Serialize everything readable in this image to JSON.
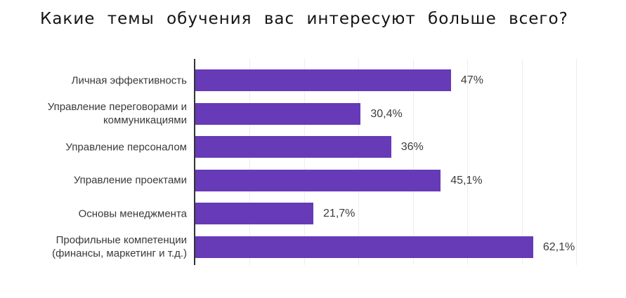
{
  "chart_data": {
    "type": "bar",
    "orientation": "horizontal",
    "title": "Какие темы обучения вас интересуют больше всего?",
    "xlabel": "",
    "ylabel": "",
    "categories": [
      "Личная эффективность",
      "Управление переговорами и коммуникациями",
      "Управление персоналом",
      "Управление проектами",
      "Основы менеджмента",
      "Профильные компетенции (финансы, маркетинг и т.д.)"
    ],
    "values": [
      47,
      30.4,
      36,
      45.1,
      21.7,
      62.1
    ],
    "value_labels": [
      "47%",
      "30,4%",
      "36%",
      "45,1%",
      "21,7%",
      "62,1%"
    ],
    "xlim": [
      0,
      70
    ],
    "grid": true,
    "gridline_values": [
      10,
      20,
      30,
      40,
      50,
      60,
      70
    ],
    "legend": "none",
    "bar_color": "#673AB7",
    "axis_color": "#333333",
    "gridline_color": "#ededed",
    "title_color": "#141414",
    "label_color": "#3a3a3a",
    "background_color": "#ffffff"
  }
}
